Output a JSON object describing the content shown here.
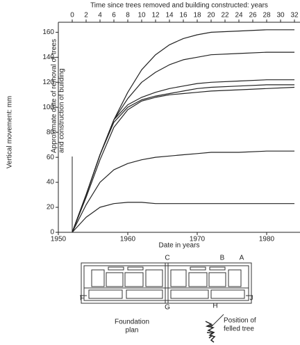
{
  "chart_data": {
    "type": "line",
    "x2_label": "Time since trees removed and building constructed: years",
    "ylabel": "Vertical movement: mm",
    "xlabel": "Date in years",
    "annotation": [
      "Approximate date of removal of trees",
      "and construction of building"
    ],
    "xlim": [
      1950,
      1984
    ],
    "xticks": [
      1950,
      1960,
      1970,
      1980
    ],
    "x2lim": [
      -2,
      32
    ],
    "x2ticks": [
      0,
      2,
      4,
      6,
      8,
      10,
      12,
      14,
      16,
      18,
      20,
      22,
      24,
      26,
      28,
      30,
      32
    ],
    "ylim": [
      0,
      168
    ],
    "yticks": [
      0,
      20,
      40,
      60,
      80,
      100,
      120,
      140,
      160
    ],
    "x": [
      0,
      2,
      4,
      6,
      8,
      10,
      12,
      14,
      16,
      18,
      20,
      24,
      28,
      32
    ],
    "series": [
      {
        "color": "#222",
        "axis": "x2",
        "values": [
          0,
          30,
          62,
          90,
          112,
          130,
          142,
          150,
          155,
          158,
          160,
          161,
          162,
          162
        ]
      },
      {
        "color": "#222",
        "axis": "x2",
        "values": [
          0,
          30,
          62,
          90,
          107,
          120,
          128,
          134,
          138,
          140,
          142,
          143,
          144,
          144
        ]
      },
      {
        "color": "#222",
        "axis": "x2",
        "values": [
          0,
          30,
          62,
          90,
          102,
          108,
          112,
          115,
          117,
          119,
          120,
          121,
          122,
          122
        ]
      },
      {
        "color": "#222",
        "axis": "x2",
        "values": [
          0,
          30,
          62,
          88,
          100,
          106,
          109,
          111,
          113,
          115,
          116,
          117,
          118,
          118
        ]
      },
      {
        "color": "#222",
        "axis": "x2",
        "values": [
          0,
          28,
          58,
          84,
          98,
          105,
          108,
          110,
          111,
          112,
          113,
          114,
          115,
          116
        ]
      },
      {
        "color": "#222",
        "axis": "x2",
        "values": [
          0,
          22,
          40,
          50,
          55,
          58,
          60,
          61,
          62,
          63,
          64,
          64,
          65,
          65
        ]
      },
      {
        "color": "#222",
        "axis": "x2",
        "values": [
          0,
          12,
          20,
          23,
          24,
          24,
          23,
          23,
          23,
          23,
          23,
          23,
          23,
          23
        ]
      }
    ]
  },
  "foundation_plan": {
    "labels": {
      "A": "A",
      "B": "B",
      "C": "C",
      "F": "F",
      "G": "G",
      "H": "H",
      "J": "J"
    },
    "caption": [
      "Foundation",
      "plan"
    ],
    "tree_note": [
      "Position of",
      "felled tree"
    ]
  }
}
